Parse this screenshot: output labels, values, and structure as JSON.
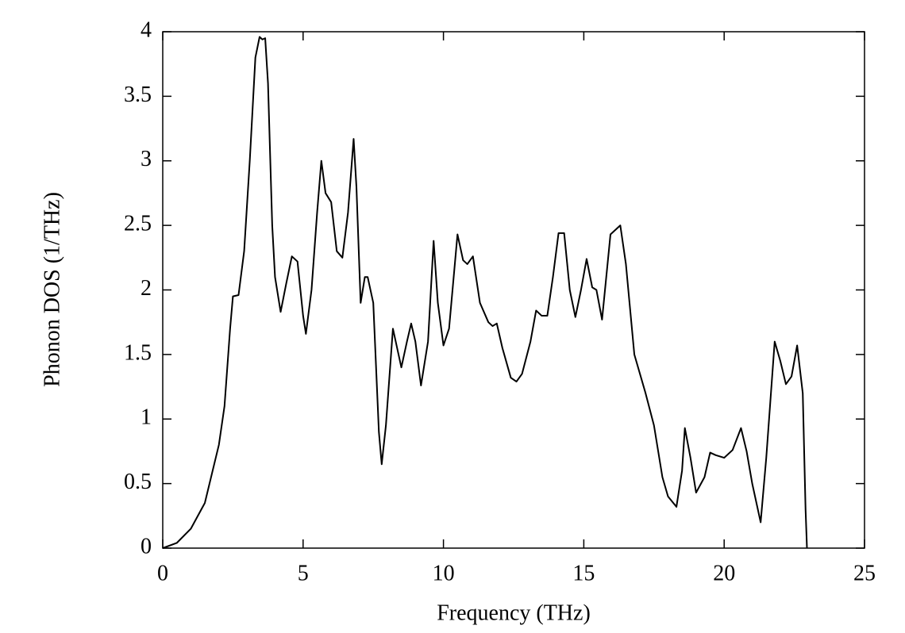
{
  "chart_data": {
    "type": "line",
    "xlabel": "Frequency (THz)",
    "ylabel": "Phonon DOS (1/THz)",
    "xlim": [
      0,
      25
    ],
    "ylim": [
      0,
      4
    ],
    "xticks": [
      0,
      5,
      10,
      15,
      20,
      25
    ],
    "yticks": [
      0,
      0.5,
      1,
      1.5,
      2,
      2.5,
      3,
      3.5,
      4
    ],
    "grid": false,
    "series": [
      {
        "color": "#000000",
        "x": [
          0,
          0.5,
          1.0,
          1.5,
          2.0,
          2.2,
          2.4,
          2.5,
          2.7,
          2.9,
          3.1,
          3.3,
          3.45,
          3.55,
          3.65,
          3.75,
          3.9,
          4.0,
          4.2,
          4.4,
          4.6,
          4.8,
          5.0,
          5.1,
          5.3,
          5.5,
          5.65,
          5.8,
          6.0,
          6.2,
          6.4,
          6.6,
          6.8,
          6.9,
          7.05,
          7.2,
          7.3,
          7.5,
          7.7,
          7.8,
          7.95,
          8.2,
          8.5,
          8.7,
          8.85,
          9.0,
          9.2,
          9.45,
          9.65,
          9.8,
          10.0,
          10.2,
          10.5,
          10.7,
          10.85,
          11.05,
          11.3,
          11.6,
          11.75,
          11.9,
          12.1,
          12.4,
          12.6,
          12.8,
          13.1,
          13.3,
          13.5,
          13.7,
          13.9,
          14.1,
          14.3,
          14.5,
          14.7,
          14.9,
          15.1,
          15.3,
          15.45,
          15.65,
          15.8,
          15.95,
          16.1,
          16.3,
          16.5,
          16.8,
          17.2,
          17.5,
          17.8,
          18.0,
          18.3,
          18.5,
          18.6,
          18.8,
          19.0,
          19.3,
          19.5,
          19.7,
          20.0,
          20.3,
          20.6,
          20.8,
          21.0,
          21.3,
          21.5,
          21.8,
          22.0,
          22.2,
          22.4,
          22.6,
          22.8,
          22.9,
          22.95
        ],
        "values": [
          0,
          0.04,
          0.15,
          0.35,
          0.8,
          1.1,
          1.7,
          1.95,
          1.96,
          2.3,
          3.0,
          3.8,
          3.96,
          3.94,
          3.95,
          3.6,
          2.5,
          2.1,
          1.83,
          2.05,
          2.26,
          2.22,
          1.8,
          1.66,
          2.0,
          2.6,
          3.0,
          2.75,
          2.68,
          2.3,
          2.25,
          2.6,
          3.17,
          2.8,
          1.9,
          2.1,
          2.1,
          1.9,
          0.9,
          0.65,
          0.95,
          1.7,
          1.4,
          1.6,
          1.74,
          1.6,
          1.26,
          1.6,
          2.38,
          1.9,
          1.57,
          1.7,
          2.43,
          2.23,
          2.2,
          2.26,
          1.9,
          1.75,
          1.72,
          1.74,
          1.55,
          1.32,
          1.29,
          1.35,
          1.6,
          1.84,
          1.8,
          1.8,
          2.1,
          2.44,
          2.44,
          2.0,
          1.79,
          2.0,
          2.24,
          2.02,
          2.0,
          1.77,
          2.1,
          2.43,
          2.46,
          2.5,
          2.2,
          1.5,
          1.2,
          0.95,
          0.55,
          0.4,
          0.32,
          0.6,
          0.93,
          0.7,
          0.43,
          0.55,
          0.74,
          0.72,
          0.7,
          0.76,
          0.93,
          0.75,
          0.5,
          0.2,
          0.7,
          1.6,
          1.45,
          1.27,
          1.33,
          1.57,
          1.2,
          0.3,
          0
        ]
      }
    ]
  }
}
